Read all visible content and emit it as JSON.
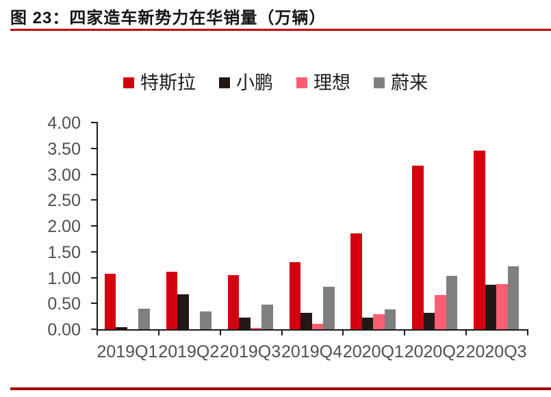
{
  "header": {
    "title": "图 23：四家造车新势力在华销量（万辆）"
  },
  "colors": {
    "title_underline": "#c00000",
    "bottom_rule": "#a30000",
    "axis": "#1a1a1a",
    "tick_label": "#4f4f4f"
  },
  "chart_data": {
    "type": "bar",
    "title": "四家造车新势力在华销量（万辆）",
    "categories": [
      "2019Q1",
      "2019Q2",
      "2019Q3",
      "2019Q4",
      "2020Q1",
      "2020Q2",
      "2020Q3"
    ],
    "series": [
      {
        "name": "特斯拉",
        "color": "#d4000f",
        "values": [
          1.07,
          1.11,
          1.05,
          1.3,
          1.86,
          3.17,
          3.46
        ]
      },
      {
        "name": "小鹏",
        "color": "#231815",
        "values": [
          0.04,
          0.67,
          0.23,
          0.32,
          0.22,
          0.32,
          0.86
        ]
      },
      {
        "name": "理想",
        "color": "#fc5f72",
        "values": [
          0.0,
          0.0,
          0.02,
          0.11,
          0.29,
          0.66,
          0.87
        ]
      },
      {
        "name": "蔚来",
        "color": "#7f7f7f",
        "values": [
          0.4,
          0.35,
          0.48,
          0.82,
          0.38,
          1.03,
          1.22
        ]
      }
    ],
    "xlabel": "",
    "ylabel": "",
    "ylim": [
      0,
      4.0
    ],
    "y_tick_step": 0.5,
    "y_tick_labels": [
      "0.00",
      "0.50",
      "1.00",
      "1.50",
      "2.00",
      "2.50",
      "3.00",
      "3.50",
      "4.00"
    ],
    "grid": false,
    "legend_position": "top"
  }
}
